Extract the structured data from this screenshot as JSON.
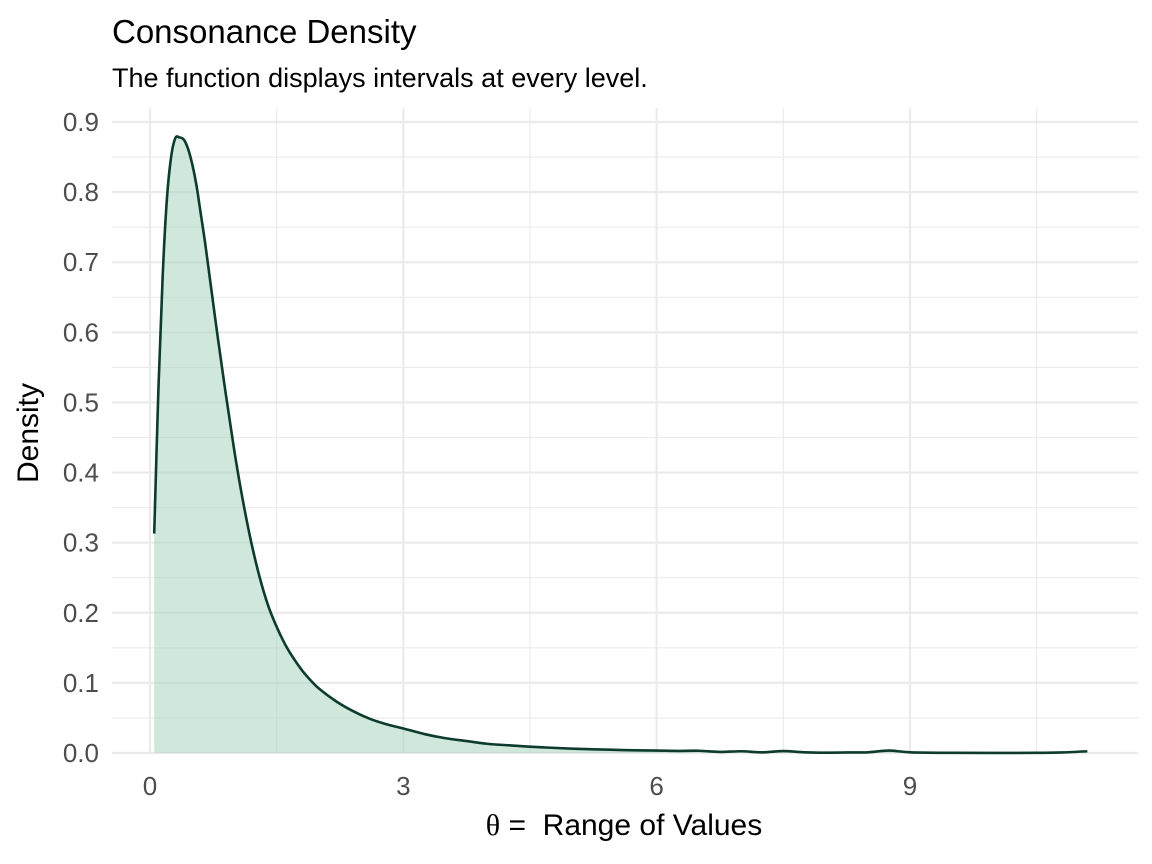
{
  "chart_data": {
    "type": "area",
    "title": "Consonance Density",
    "subtitle": "The function displays intervals at every level.",
    "xlabel": {
      "symbol": "θ",
      "text": " =  Range of Values"
    },
    "ylabel": "Density",
    "xlim": [
      -0.45,
      11.7
    ],
    "ylim": [
      0,
      0.92
    ],
    "x_ticks": [
      0,
      3,
      6,
      9
    ],
    "x_tick_labels": [
      "0",
      "3",
      "6",
      "9"
    ],
    "y_ticks": [
      0.0,
      0.1,
      0.2,
      0.3,
      0.4,
      0.5,
      0.6,
      0.7,
      0.8,
      0.9
    ],
    "y_tick_labels": [
      "0.0",
      "0.1",
      "0.2",
      "0.3",
      "0.4",
      "0.5",
      "0.6",
      "0.7",
      "0.8",
      "0.9"
    ],
    "grid": true,
    "legend": "none",
    "colors": {
      "line": "#0d3b2e",
      "fill": "#a8d5be",
      "fill_opacity": 0.55,
      "grid": "#ebebeb"
    },
    "series": [
      {
        "x": [
          0.05,
          0.1,
          0.15,
          0.2,
          0.25,
          0.3,
          0.35,
          0.4,
          0.45,
          0.5,
          0.55,
          0.6,
          0.65,
          0.7,
          0.75,
          0.8,
          0.9,
          1.0,
          1.1,
          1.2,
          1.3,
          1.4,
          1.5,
          1.6,
          1.7,
          1.8,
          1.9,
          2.0,
          2.2,
          2.4,
          2.6,
          2.8,
          3.0,
          3.25,
          3.5,
          3.75,
          4.0,
          4.25,
          4.5,
          4.75,
          5.0,
          5.25,
          5.5,
          5.75,
          6.0,
          6.25,
          6.5,
          6.75,
          7.0,
          7.25,
          7.5,
          7.75,
          8.0,
          8.25,
          8.5,
          8.75,
          9.0,
          9.5,
          10.0,
          10.5,
          10.8,
          11.1
        ],
        "y": [
          0.313,
          0.52,
          0.68,
          0.79,
          0.85,
          0.877,
          0.878,
          0.875,
          0.862,
          0.84,
          0.81,
          0.77,
          0.73,
          0.685,
          0.64,
          0.595,
          0.51,
          0.43,
          0.36,
          0.3,
          0.25,
          0.21,
          0.18,
          0.155,
          0.135,
          0.118,
          0.104,
          0.092,
          0.074,
          0.06,
          0.049,
          0.041,
          0.035,
          0.027,
          0.021,
          0.017,
          0.013,
          0.011,
          0.009,
          0.0075,
          0.0062,
          0.0052,
          0.0045,
          0.0038,
          0.0035,
          0.003,
          0.0032,
          0.0015,
          0.0025,
          0.001,
          0.0028,
          0.001,
          0.0005,
          0.0008,
          0.001,
          0.0035,
          0.001,
          0.0002,
          0.0001,
          0.0002,
          0.0008,
          0.0025
        ]
      }
    ]
  }
}
